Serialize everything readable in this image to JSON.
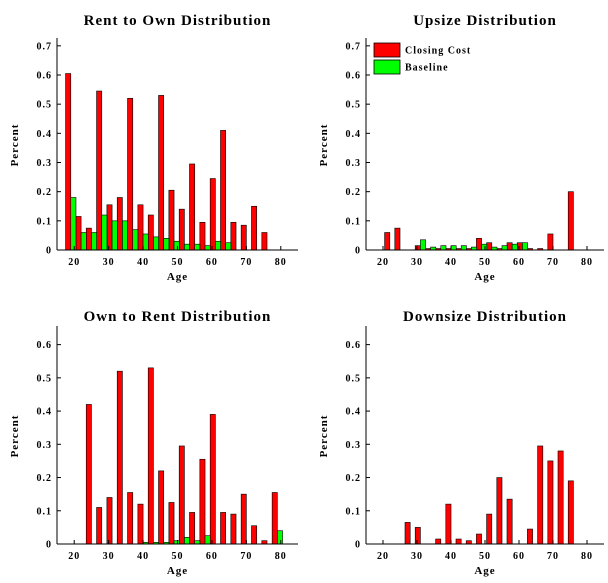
{
  "legend": {
    "entries": [
      {
        "name": "Closing Cost",
        "color": "#ff0000"
      },
      {
        "name": "Baseline",
        "color": "#00ff00"
      }
    ]
  },
  "chart_data": [
    {
      "type": "bar",
      "title": "Rent to Own Distribution",
      "xlabel": "Age",
      "ylabel": "Percent",
      "xlim": [
        15,
        85
      ],
      "ylim": [
        0,
        0.72
      ],
      "xticks": [
        20,
        30,
        40,
        50,
        60,
        70,
        80
      ],
      "yticks": [
        0,
        0.1,
        0.2,
        0.3,
        0.4,
        0.5,
        0.6,
        0.7
      ],
      "ytick_labels": [
        "0",
        "0.1",
        "0.2",
        "0.3",
        "0.4",
        "0.5",
        "0.6",
        "0.7"
      ],
      "x": [
        19,
        22,
        25,
        28,
        31,
        34,
        37,
        40,
        43,
        46,
        49,
        52,
        55,
        58,
        61,
        64,
        67,
        70,
        73,
        76
      ],
      "series": [
        {
          "name": "Closing Cost",
          "color": "#ff0000",
          "values": [
            0.605,
            0.115,
            0.075,
            0.545,
            0.155,
            0.18,
            0.52,
            0.155,
            0.12,
            0.53,
            0.205,
            0.14,
            0.295,
            0.095,
            0.245,
            0.41,
            0.095,
            0.085,
            0.15,
            0.06
          ]
        },
        {
          "name": "Baseline",
          "color": "#00ff00",
          "values": [
            0.18,
            0.06,
            0.06,
            0.12,
            0.1,
            0.1,
            0.07,
            0.055,
            0.045,
            0.04,
            0.03,
            0.02,
            0.02,
            0.015,
            0.03,
            0.025,
            0,
            0,
            0,
            0
          ]
        }
      ],
      "legend": "none"
    },
    {
      "type": "bar",
      "title": "Upsize Distribution",
      "xlabel": "Age",
      "ylabel": "Percent",
      "xlim": [
        15,
        85
      ],
      "ylim": [
        0,
        0.72
      ],
      "xticks": [
        20,
        30,
        40,
        50,
        60,
        70,
        80
      ],
      "yticks": [
        0,
        0.1,
        0.2,
        0.3,
        0.4,
        0.5,
        0.6,
        0.7
      ],
      "ytick_labels": [
        "0",
        "0.1",
        "0.2",
        "0.3",
        "0.4",
        "0.5",
        "0.6",
        "0.7"
      ],
      "x": [
        22,
        25,
        28,
        31,
        34,
        37,
        40,
        43,
        46,
        49,
        52,
        55,
        58,
        61,
        64,
        67,
        70,
        73,
        76
      ],
      "series": [
        {
          "name": "Closing Cost",
          "color": "#ff0000",
          "values": [
            0.06,
            0.075,
            0,
            0.015,
            0.005,
            0.005,
            0.005,
            0.005,
            0.005,
            0.04,
            0.025,
            0.005,
            0.025,
            0.025,
            0.005,
            0.005,
            0.055,
            0,
            0.2
          ]
        },
        {
          "name": "Baseline",
          "color": "#00ff00",
          "values": [
            0,
            0,
            0,
            0.035,
            0.01,
            0.015,
            0.015,
            0.015,
            0.01,
            0.02,
            0.01,
            0.015,
            0.02,
            0.025,
            0,
            0,
            0,
            0,
            0
          ]
        }
      ],
      "legend": "top-left"
    },
    {
      "type": "bar",
      "title": "Own to Rent Distribution",
      "xlabel": "Age",
      "ylabel": "Percent",
      "xlim": [
        15,
        85
      ],
      "ylim": [
        0,
        0.65
      ],
      "xticks": [
        20,
        30,
        40,
        50,
        60,
        70,
        80
      ],
      "yticks": [
        0,
        0.1,
        0.2,
        0.3,
        0.4,
        0.5,
        0.6
      ],
      "ytick_labels": [
        "0",
        "0.1",
        "0.2",
        "0.3",
        "0.4",
        "0.5",
        "0.6"
      ],
      "x": [
        25,
        28,
        31,
        34,
        37,
        40,
        43,
        46,
        49,
        52,
        55,
        58,
        61,
        64,
        67,
        70,
        73,
        76,
        79
      ],
      "series": [
        {
          "name": "Closing Cost",
          "color": "#ff0000",
          "values": [
            0.42,
            0.11,
            0.14,
            0.52,
            0.155,
            0.12,
            0.53,
            0.22,
            0.125,
            0.295,
            0.095,
            0.255,
            0.39,
            0.095,
            0.09,
            0.15,
            0.055,
            0.01,
            0.155
          ]
        },
        {
          "name": "Baseline",
          "color": "#00ff00",
          "values": [
            0,
            0,
            0,
            0,
            0,
            0.005,
            0.005,
            0.005,
            0.01,
            0.02,
            0.01,
            0.025,
            0,
            0,
            0,
            0,
            0,
            0,
            0.04
          ]
        }
      ],
      "legend": "none"
    },
    {
      "type": "bar",
      "title": "Downsize Distribution",
      "xlabel": "Age",
      "ylabel": "Percent",
      "xlim": [
        15,
        85
      ],
      "ylim": [
        0,
        0.65
      ],
      "xticks": [
        20,
        30,
        40,
        50,
        60,
        70,
        80
      ],
      "yticks": [
        0,
        0.1,
        0.2,
        0.3,
        0.4,
        0.5,
        0.6
      ],
      "ytick_labels": [
        "0",
        "0.1",
        "0.2",
        "0.3",
        "0.4",
        "0.5",
        "0.6"
      ],
      "x": [
        28,
        31,
        34,
        37,
        40,
        43,
        46,
        49,
        52,
        55,
        58,
        61,
        64,
        67,
        70,
        73,
        76
      ],
      "series": [
        {
          "name": "Closing Cost",
          "color": "#ff0000",
          "values": [
            0.065,
            0.05,
            0,
            0.015,
            0.12,
            0.015,
            0.01,
            0.03,
            0.09,
            0.2,
            0.135,
            0,
            0.045,
            0.295,
            0.25,
            0.28,
            0.19
          ]
        },
        {
          "name": "Baseline",
          "color": "#00ff00",
          "values": [
            0,
            0,
            0,
            0,
            0,
            0,
            0,
            0,
            0,
            0,
            0,
            0,
            0,
            0,
            0,
            0,
            0
          ]
        }
      ],
      "legend": "none"
    }
  ]
}
